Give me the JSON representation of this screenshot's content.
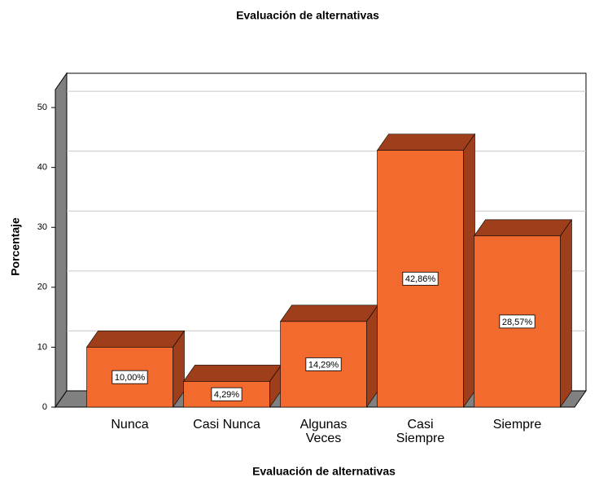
{
  "chart_data": {
    "type": "bar3d",
    "title": "Evaluación de alternativas",
    "x_label": "Evaluación de alternativas",
    "y_label": "Porcentaje",
    "categories": [
      "Nunca",
      "Casi Nunca",
      "Algunas Veces",
      "Casi Siempre",
      "Siempre"
    ],
    "values": [
      10.0,
      4.29,
      14.29,
      42.86,
      28.57
    ],
    "value_labels": [
      "10,00%",
      "4,29%",
      "14,29%",
      "42,86%",
      "28,57%"
    ],
    "color": "#f26a2e",
    "ylim": [
      0,
      53
    ],
    "yticks": [
      0,
      10,
      20,
      30,
      40,
      50
    ],
    "grid": true
  }
}
